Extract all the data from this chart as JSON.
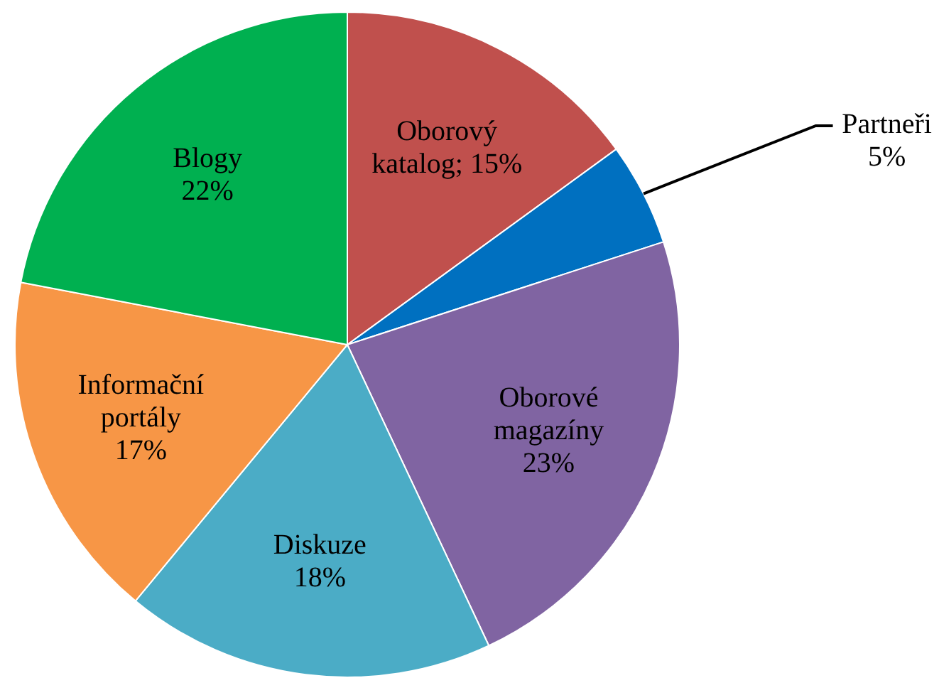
{
  "chart_data": {
    "type": "pie",
    "categories": [
      "Oborový katalog",
      "Partneři",
      "Oborové magazíny",
      "Diskuze",
      "Informační portály",
      "Blogy"
    ],
    "values": [
      15,
      5,
      23,
      18,
      17,
      22
    ],
    "colors": [
      "#c0504d",
      "#0070c0",
      "#8064a2",
      "#4bacc6",
      "#f79646",
      "#00b050"
    ],
    "value_labels": [
      "; 15%",
      "5%",
      "23%",
      "18%",
      "17%",
      "22%"
    ],
    "legend": false
  }
}
